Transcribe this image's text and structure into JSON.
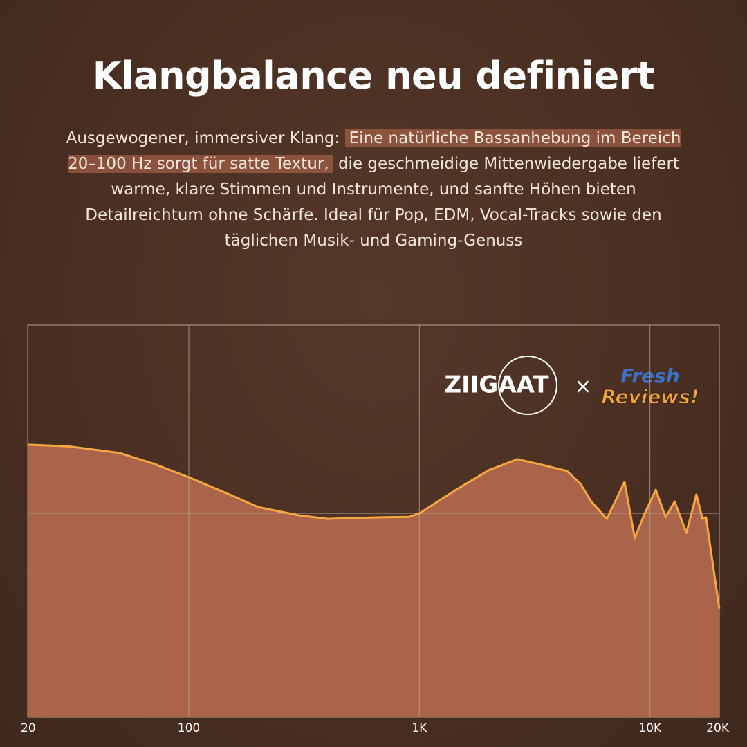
{
  "chart_data": {
    "type": "area",
    "title": "Klangbalance neu definiert",
    "description": [
      "Ausgewogener, immersiver Klang: ",
      "Eine natürliche Bassanhebung im Bereich 20–100 Hz sorgt für satte Textur,",
      " die geschmeidige Mittenwiedergabe liefert warme, klare Stimmen und Instrumente, und sanfte Höhen bieten Detailreichtum ohne Schärfe. Ideal für Pop, EDM, Vocal-Tracks sowie den täglichen Musik- und Gaming-Genuss"
    ],
    "brands": [
      "ZIIGAAT",
      "×",
      "Fresh",
      "Reviews!"
    ],
    "x": [
      20,
      30,
      50,
      70,
      100,
      150,
      200,
      300,
      400,
      500,
      700,
      900,
      1000,
      1200,
      1500,
      2000,
      2660,
      3500,
      4370,
      5000,
      5570,
      6500,
      7760,
      8600,
      9500,
      10600,
      11700,
      12800,
      14400,
      15900,
      16900,
      17500,
      20000
    ],
    "values": [
      69.5,
      69.1,
      67.4,
      64.7,
      61.2,
      56.8,
      53.6,
      51.5,
      50.6,
      50.8,
      51.0,
      51.1,
      52.0,
      55.0,
      58.6,
      63.0,
      65.8,
      64.2,
      62.8,
      59.5,
      55.0,
      50.6,
      60.0,
      45.7,
      52.0,
      58.0,
      51.0,
      55.0,
      47.0,
      56.8,
      50.6,
      51.0,
      27.7
    ],
    "line_color": "#f5a742",
    "fill_color": "#a9644a",
    "xscale": "log",
    "xlim": [
      20,
      20000
    ],
    "xticks": [
      20,
      100,
      {
        "value": 1000,
        "label": "1K"
      },
      {
        "value": 10000,
        "label": "10K"
      },
      {
        "value": 20000,
        "label": "20K"
      }
    ],
    "ylim": [
      0,
      100
    ],
    "yticks": [
      0,
      52,
      100
    ],
    "grid": true
  }
}
